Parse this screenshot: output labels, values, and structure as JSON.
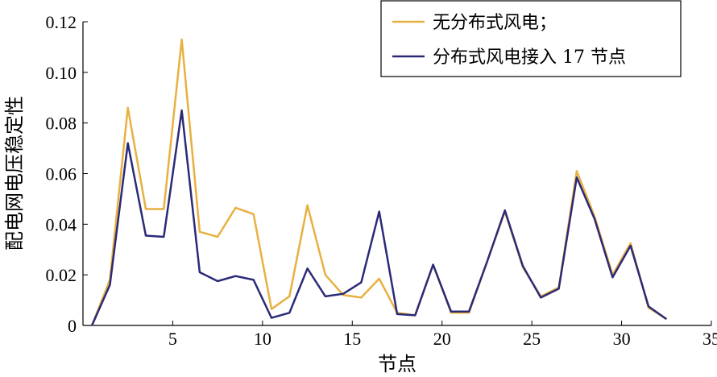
{
  "chart_data": {
    "type": "line",
    "xlabel": "节点",
    "ylabel": "配电网电压稳定性",
    "xlim": [
      0,
      35
    ],
    "ylim": [
      0,
      0.12
    ],
    "xticks": [
      "5",
      "10",
      "15",
      "20",
      "25",
      "30",
      "35"
    ],
    "yticks": [
      "0",
      "0.02",
      "0.04",
      "0.06",
      "0.08",
      "0.10",
      "0.12"
    ],
    "legend_position": "top-right",
    "grid": false,
    "series": [
      {
        "name": "无分布式风电；",
        "color": "#E8B040",
        "x": [
          0.5,
          1.5,
          2.5,
          3.5,
          4.5,
          5.5,
          6.5,
          7.5,
          8.5,
          9.5,
          10.5,
          11.5,
          12.5,
          13.5,
          14.5,
          15.5,
          16.5,
          17.5,
          18.5,
          19.5,
          20.5,
          21.5,
          22.5,
          23.5,
          24.5,
          25.5,
          26.5,
          27.5,
          28.5,
          29.5,
          30.5,
          31.5,
          32.5
        ],
        "values": [
          0.0,
          0.018,
          0.086,
          0.046,
          0.046,
          0.113,
          0.037,
          0.035,
          0.0465,
          0.044,
          0.0065,
          0.0115,
          0.0475,
          0.02,
          0.012,
          0.011,
          0.0185,
          0.005,
          0.004,
          0.024,
          0.005,
          0.005,
          0.025,
          0.045,
          0.023,
          0.0115,
          0.015,
          0.061,
          0.043,
          0.02,
          0.0325,
          0.007,
          0.0025
        ]
      },
      {
        "name": "分布式风电接入 17 节点",
        "color": "#2B2A78",
        "x": [
          0.5,
          1.5,
          2.5,
          3.5,
          4.5,
          5.5,
          6.5,
          7.5,
          8.5,
          9.5,
          10.5,
          11.5,
          12.5,
          13.5,
          14.5,
          15.5,
          16.5,
          17.5,
          18.5,
          19.5,
          20.5,
          21.5,
          22.5,
          23.5,
          24.5,
          25.5,
          26.5,
          27.5,
          28.5,
          29.5,
          30.5,
          31.5,
          32.5
        ],
        "values": [
          0.0,
          0.016,
          0.072,
          0.0355,
          0.035,
          0.085,
          0.021,
          0.0175,
          0.0195,
          0.018,
          0.003,
          0.005,
          0.0225,
          0.0115,
          0.0125,
          0.017,
          0.045,
          0.0045,
          0.004,
          0.024,
          0.0055,
          0.0055,
          0.025,
          0.0455,
          0.0235,
          0.011,
          0.0145,
          0.0585,
          0.042,
          0.019,
          0.0315,
          0.0075,
          0.0025
        ]
      }
    ]
  }
}
